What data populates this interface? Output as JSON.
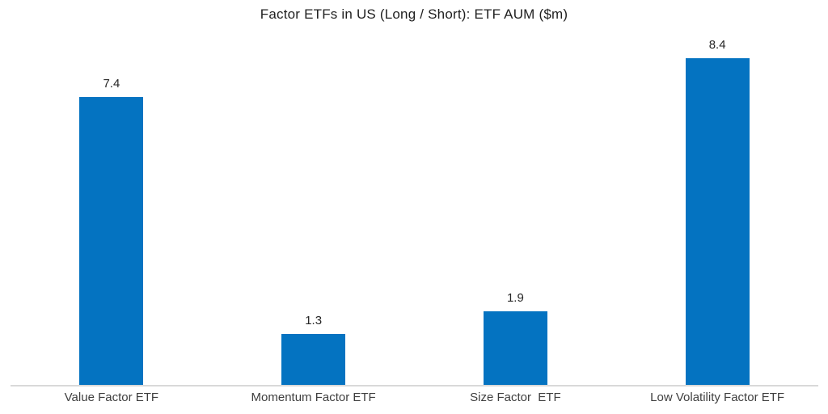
{
  "chart_title": "Factor ETFs in US (Long / Short): ETF AUM ($m)",
  "chart_data": {
    "type": "bar",
    "title": "Factor ETFs in US (Long / Short): ETF AUM ($m)",
    "categories": [
      "Value Factor ETF",
      "Momentum Factor ETF",
      "Size Factor  ETF",
      "Low Volatility Factor ETF"
    ],
    "values": [
      7.4,
      1.3,
      1.9,
      8.4
    ],
    "value_labels": [
      "7.4",
      "1.3",
      "1.9",
      "8.4"
    ],
    "xlabel": "",
    "ylabel": "",
    "ylim": [
      0,
      9
    ],
    "grid": false,
    "legend": false,
    "y_axis_visible": false,
    "bar_color": "#0473c1",
    "axis_line_color": "#d9d9d9",
    "value_label_color": "#262626",
    "category_label_color": "#3f3f3f",
    "title_color": "#1f1f1f",
    "background_color": "#ffffff"
  }
}
